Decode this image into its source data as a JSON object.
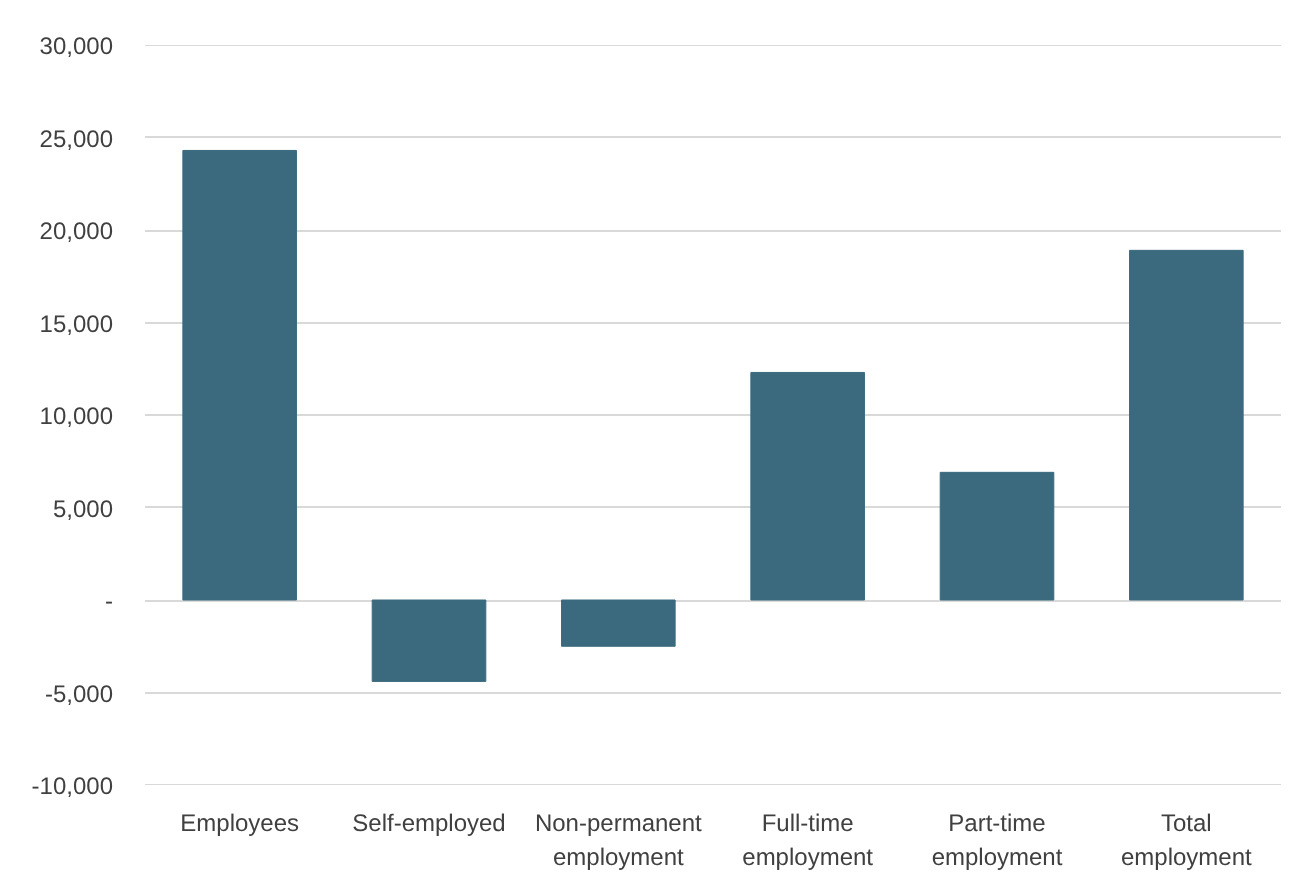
{
  "chart_data": {
    "type": "bar",
    "categories": [
      "Employees",
      "Self-employed",
      "Non-permanent employment",
      "Full-time employment",
      "Part-time employment",
      "Total employment"
    ],
    "values": [
      24300,
      -4400,
      -2500,
      12300,
      6900,
      18900
    ],
    "color": "#3b6a7e",
    "ylim": [
      -10000,
      30000
    ],
    "yticks": [
      {
        "value": -10000,
        "label": "-10,000"
      },
      {
        "value": -5000,
        "label": "-5,000"
      },
      {
        "value": 0,
        "label": "-"
      },
      {
        "value": 5000,
        "label": "5,000"
      },
      {
        "value": 10000,
        "label": "10,000"
      },
      {
        "value": 15000,
        "label": "15,000"
      },
      {
        "value": 20000,
        "label": "20,000"
      },
      {
        "value": 25000,
        "label": "25,000"
      },
      {
        "value": 30000,
        "label": "30,000"
      }
    ],
    "grid": "y"
  }
}
